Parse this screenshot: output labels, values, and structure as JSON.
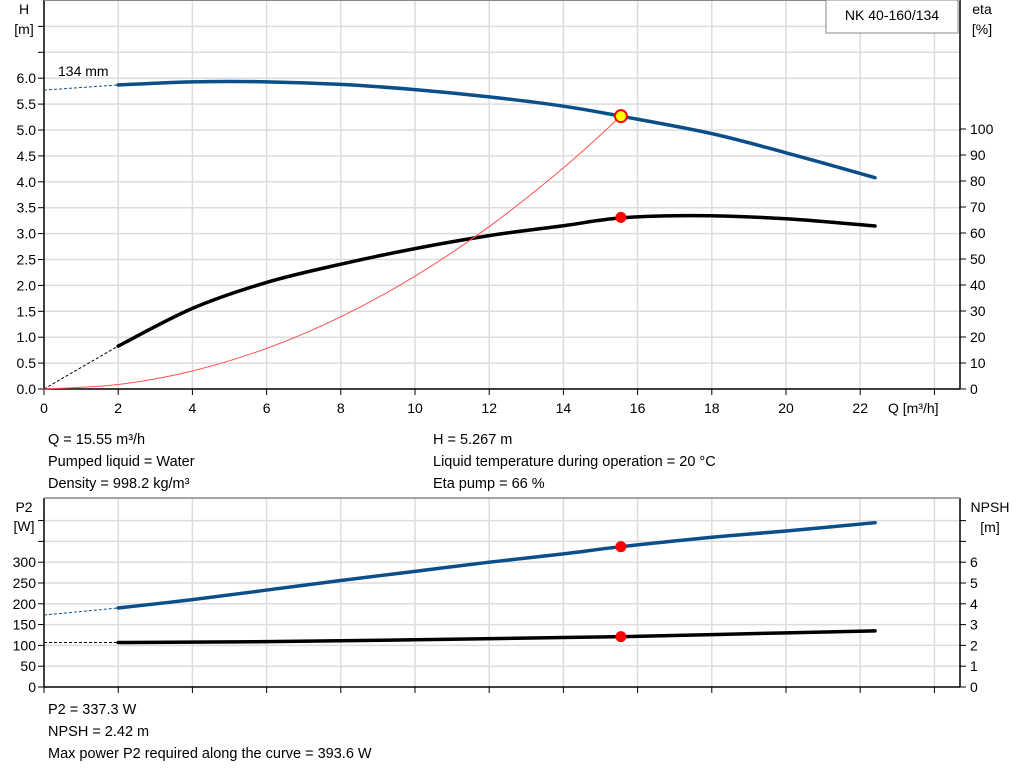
{
  "chart_data": [
    {
      "type": "line",
      "title": "NK 40-160/134",
      "xlabel": "Q [m³/h]",
      "ylabel": "H\n[m]",
      "y2label": "eta\n[%]",
      "xlim": [
        0,
        24.5
      ],
      "ylim": [
        0,
        7.5
      ],
      "y2lim": [
        0,
        100
      ],
      "grid": true,
      "x_ticks": [
        "0",
        "2",
        "4",
        "6",
        "8",
        "10",
        "12",
        "14",
        "16",
        "18",
        "20",
        "22"
      ],
      "y_ticks": [
        "0.0",
        "0.5",
        "1.0",
        "1.5",
        "2.0",
        "2.5",
        "3.0",
        "3.5",
        "4.0",
        "4.5",
        "5.0",
        "5.5",
        "6.0"
      ],
      "y2_ticks": [
        "0",
        "10",
        "20",
        "30",
        "40",
        "50",
        "60",
        "70",
        "80",
        "90",
        "100"
      ],
      "impeller_label": "134 mm",
      "series": [
        {
          "key": "H",
          "axis": "left",
          "color": "#0b4f8a",
          "x": [
            2,
            4,
            6,
            8,
            10,
            12,
            14,
            15.55,
            18,
            20,
            22.4
          ],
          "y": [
            5.87,
            5.93,
            5.93,
            5.88,
            5.78,
            5.64,
            5.46,
            5.267,
            4.93,
            4.56,
            4.08
          ],
          "extrapolation": {
            "x": [
              0,
              2
            ],
            "y": [
              5.77,
              5.87
            ]
          }
        },
        {
          "key": "eta",
          "axis": "right",
          "color": "#000000",
          "x": [
            2,
            4,
            6,
            8,
            10,
            12,
            14,
            15.55,
            17.5,
            20,
            22.4
          ],
          "y": [
            16.5,
            31,
            41,
            48,
            54,
            59,
            62.8,
            65.8,
            66.7,
            65.5,
            62.7
          ],
          "extrapolation": {
            "x": [
              0,
              2
            ],
            "y": [
              0,
              16.5
            ]
          }
        },
        {
          "key": "system",
          "axis": "left",
          "color": "#ff5050",
          "x": [
            0,
            2,
            4,
            6,
            8,
            10,
            12,
            14,
            15.55
          ],
          "y": [
            0,
            0.087,
            0.348,
            0.784,
            1.394,
            2.178,
            3.136,
            4.269,
            5.267
          ]
        }
      ],
      "operating_point": {
        "x": 15.55,
        "H": 5.267,
        "eta": 66
      }
    },
    {
      "type": "line",
      "ylabel": "P2\n[W]",
      "y2label": "NPSH\n[m]",
      "xlim": [
        0,
        24.5
      ],
      "ylim": [
        0,
        450
      ],
      "y2lim": [
        0,
        9
      ],
      "grid": true,
      "y_ticks": [
        "0",
        "50",
        "100",
        "150",
        "200",
        "250",
        "300"
      ],
      "y2_ticks": [
        "0",
        "1",
        "2",
        "3",
        "4",
        "5",
        "6"
      ],
      "series": [
        {
          "key": "P2",
          "axis": "left",
          "color": "#0b4f8a",
          "x": [
            2,
            4,
            6,
            8,
            10,
            12,
            14,
            15.55,
            18,
            20,
            22.4
          ],
          "y": [
            190,
            210,
            233,
            256,
            278,
            300,
            320,
            337.3,
            360,
            375,
            395
          ],
          "extrapolation": {
            "x": [
              0,
              2
            ],
            "y": [
              173,
              190
            ]
          }
        },
        {
          "key": "NPSH",
          "axis": "right",
          "color": "#000000",
          "x": [
            2,
            6,
            10,
            14,
            15.55,
            18,
            22.4
          ],
          "y": [
            2.14,
            2.18,
            2.27,
            2.38,
            2.42,
            2.52,
            2.7
          ],
          "extrapolation": {
            "x": [
              0,
              2
            ],
            "y": [
              2.14,
              2.14
            ]
          }
        }
      ],
      "operating_point": {
        "x": 15.55,
        "P2": 337.3,
        "NPSH": 2.42
      }
    }
  ],
  "info_top": {
    "left": [
      "Q = 15.55 m³/h",
      "Pumped liquid = Water",
      "Density = 998.2 kg/m³"
    ],
    "right": [
      "H = 5.267 m",
      "Liquid temperature during operation = 20 °C",
      "Eta pump = 66 %"
    ]
  },
  "info_bottom": [
    "P2 = 337.3 W",
    "NPSH = 2.42 m",
    "Max power P2 required along the curve = 393.6 W"
  ],
  "colors": {
    "blue_curve": "#0b4f8a",
    "op_point": "#ff0000",
    "op_point_h": "#ffff00",
    "grid": "#dcdcdc"
  }
}
